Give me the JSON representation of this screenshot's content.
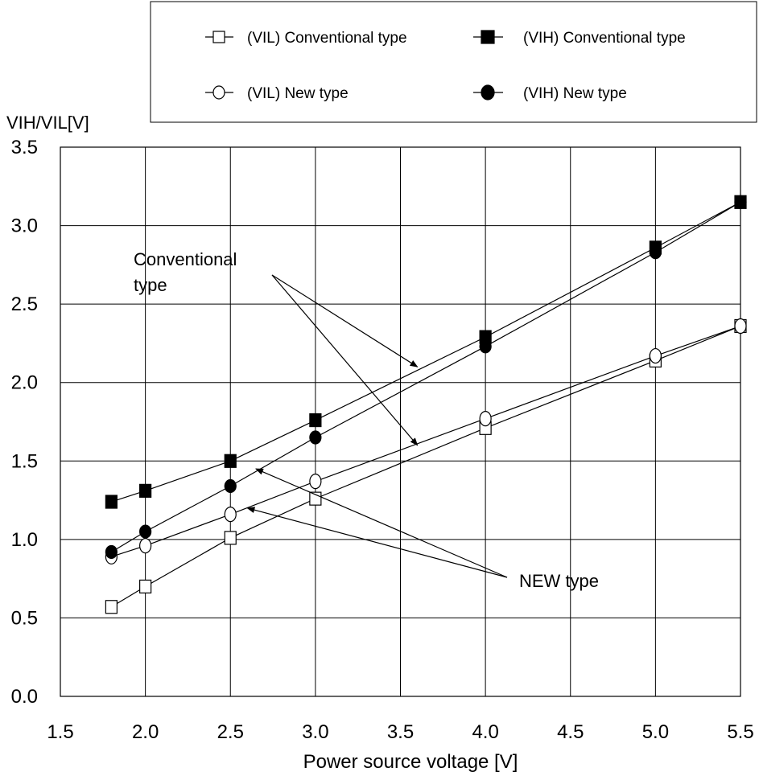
{
  "chart_data": {
    "type": "line",
    "ylabel": "VIH/VIL[V]",
    "xlabel": "Power source voltage [V]",
    "xlim": [
      1.5,
      5.5
    ],
    "ylim": [
      0.0,
      3.5
    ],
    "x_ticks": [
      "1.5",
      "2.0",
      "2.5",
      "3.0",
      "3.5",
      "4.0",
      "4.5",
      "5.0",
      "5.5"
    ],
    "y_ticks": [
      "0.0",
      "0.5",
      "1.0",
      "1.5",
      "2.0",
      "2.5",
      "3.0",
      "3.5"
    ],
    "grid": true,
    "legend_position": "top",
    "x": [
      1.8,
      2.0,
      2.5,
      3.0,
      4.0,
      5.0,
      5.5
    ],
    "series": [
      {
        "name": "(VIL) Conventional type",
        "marker": "square-open",
        "values": [
          0.57,
          0.7,
          1.01,
          1.26,
          1.71,
          2.14,
          2.36
        ]
      },
      {
        "name": "(VIH) Conventional type",
        "marker": "square-filled",
        "values": [
          1.24,
          1.31,
          1.5,
          1.76,
          2.29,
          2.86,
          3.15
        ]
      },
      {
        "name": "(VIL) New type",
        "marker": "circle-open",
        "values": [
          0.89,
          0.96,
          1.16,
          1.37,
          1.77,
          2.17,
          2.36
        ]
      },
      {
        "name": "(VIH) New type",
        "marker": "circle-filled",
        "values": [
          0.92,
          1.05,
          1.34,
          1.65,
          2.23,
          2.83,
          3.15
        ]
      }
    ],
    "annotations": [
      {
        "text_lines": [
          "Conventional",
          "type"
        ],
        "targets": [
          [
            3.6,
            2.1
          ],
          [
            3.6,
            1.6
          ]
        ]
      },
      {
        "text_lines": [
          "NEW type"
        ],
        "targets": [
          [
            2.65,
            1.45
          ],
          [
            2.6,
            1.2
          ]
        ]
      }
    ]
  }
}
